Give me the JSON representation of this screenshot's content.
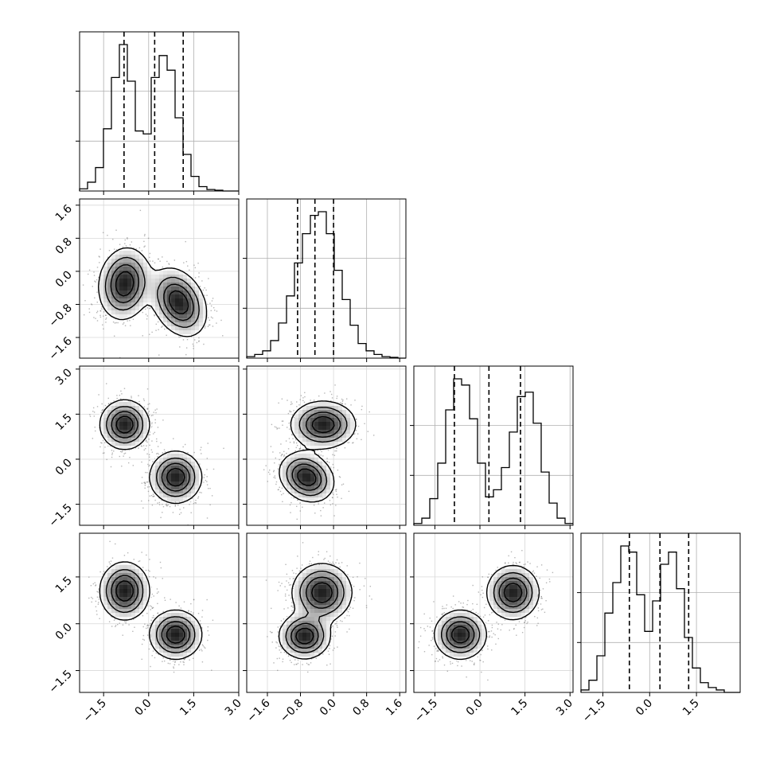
{
  "chart_data": {
    "type": "corner",
    "variables": [
      {
        "ticks": [
          -1.5,
          0.0,
          1.5,
          3.0
        ],
        "tick_labels": [
          "−1.5",
          "0.0",
          "1.5",
          "3.0"
        ],
        "range": [
          -2.3,
          3.0
        ]
      },
      {
        "ticks": [
          -1.6,
          -0.8,
          0.0,
          0.8,
          1.6
        ],
        "tick_labels": [
          "−1.6",
          "−0.8",
          "0.0",
          "0.8",
          "1.6"
        ],
        "range": [
          -2.1,
          1.75
        ]
      },
      {
        "ticks": [
          -1.5,
          0.0,
          1.5,
          3.0
        ],
        "tick_labels": [
          "−1.5",
          "0.0",
          "1.5",
          "3.0"
        ],
        "range": [
          -2.2,
          3.1
        ]
      },
      {
        "ticks": [
          -1.5,
          0.0,
          1.5
        ],
        "tick_labels": [
          "−1.5",
          "0.0",
          "1.5"
        ],
        "range": [
          -2.2,
          2.9
        ]
      }
    ],
    "marginals": [
      {
        "quantiles": [
          -0.82,
          0.2,
          1.15
        ],
        "hist": [
          0.3,
          1.2,
          3.2,
          8.5,
          15.5,
          20.0,
          15.0,
          8.2,
          7.8,
          15.5,
          18.5,
          16.5,
          10.0,
          5.0,
          2.0,
          0.6,
          0.2,
          0.1,
          0.0,
          0.0
        ]
      },
      {
        "quantiles": [
          -0.87,
          -0.45,
          0.0
        ],
        "hist": [
          0.2,
          0.5,
          1.0,
          2.4,
          4.8,
          8.5,
          13.0,
          17.0,
          19.5,
          20.0,
          17.0,
          12.0,
          8.0,
          4.5,
          2.0,
          1.0,
          0.5,
          0.2,
          0.1,
          0.0
        ]
      },
      {
        "quantiles": [
          -0.85,
          0.3,
          1.35
        ],
        "hist": [
          0.2,
          0.8,
          3.0,
          7.0,
          13.0,
          16.5,
          15.8,
          12.0,
          7.0,
          3.2,
          4.0,
          6.5,
          10.5,
          14.5,
          15.0,
          11.5,
          6.0,
          2.5,
          0.8,
          0.2
        ]
      },
      {
        "quantiles": [
          -0.65,
          0.33,
          1.25
        ],
        "hist": [
          0.2,
          1.0,
          3.0,
          6.5,
          9.0,
          12.0,
          11.5,
          8.0,
          5.0,
          7.5,
          10.5,
          11.5,
          8.5,
          4.5,
          2.0,
          0.8,
          0.4,
          0.2,
          0.0,
          0.0
        ]
      }
    ],
    "joint": [
      {
        "row": 1,
        "col": 0,
        "modes": [
          {
            "x": -0.8,
            "y": -0.3,
            "sx": 0.42,
            "sy": 0.42,
            "rho": 0.1,
            "w": 0.5
          },
          {
            "x": 1.0,
            "y": -0.75,
            "sx": 0.45,
            "sy": 0.4,
            "rho": -0.3,
            "w": 0.5
          }
        ]
      },
      {
        "row": 2,
        "col": 0,
        "modes": [
          {
            "x": -0.8,
            "y": 1.15,
            "sx": 0.4,
            "sy": 0.4,
            "rho": 0.0,
            "w": 0.5
          },
          {
            "x": 0.9,
            "y": -0.6,
            "sx": 0.42,
            "sy": 0.42,
            "rho": 0.0,
            "w": 0.5
          }
        ]
      },
      {
        "row": 2,
        "col": 1,
        "modes": [
          {
            "x": -0.25,
            "y": 1.15,
            "sx": 0.38,
            "sy": 0.38,
            "rho": 0.0,
            "w": 0.5
          },
          {
            "x": -0.65,
            "y": -0.6,
            "sx": 0.32,
            "sy": 0.4,
            "rho": -0.2,
            "w": 0.5
          }
        ]
      },
      {
        "row": 3,
        "col": 0,
        "modes": [
          {
            "x": -0.8,
            "y": 1.05,
            "sx": 0.4,
            "sy": 0.45,
            "rho": 0.0,
            "w": 0.5
          },
          {
            "x": 0.9,
            "y": -0.35,
            "sx": 0.42,
            "sy": 0.38,
            "rho": 0.0,
            "w": 0.5
          }
        ]
      },
      {
        "row": 3,
        "col": 1,
        "modes": [
          {
            "x": -0.28,
            "y": 1.0,
            "sx": 0.35,
            "sy": 0.45,
            "rho": 0.0,
            "w": 0.5
          },
          {
            "x": -0.7,
            "y": -0.4,
            "sx": 0.3,
            "sy": 0.35,
            "rho": 0.0,
            "w": 0.5
          }
        ]
      },
      {
        "row": 3,
        "col": 2,
        "modes": [
          {
            "x": 1.1,
            "y": 1.0,
            "sx": 0.42,
            "sy": 0.42,
            "rho": 0.0,
            "w": 0.5
          },
          {
            "x": -0.65,
            "y": -0.35,
            "sx": 0.42,
            "sy": 0.38,
            "rho": 0.0,
            "w": 0.5
          }
        ]
      }
    ],
    "grid": true
  }
}
